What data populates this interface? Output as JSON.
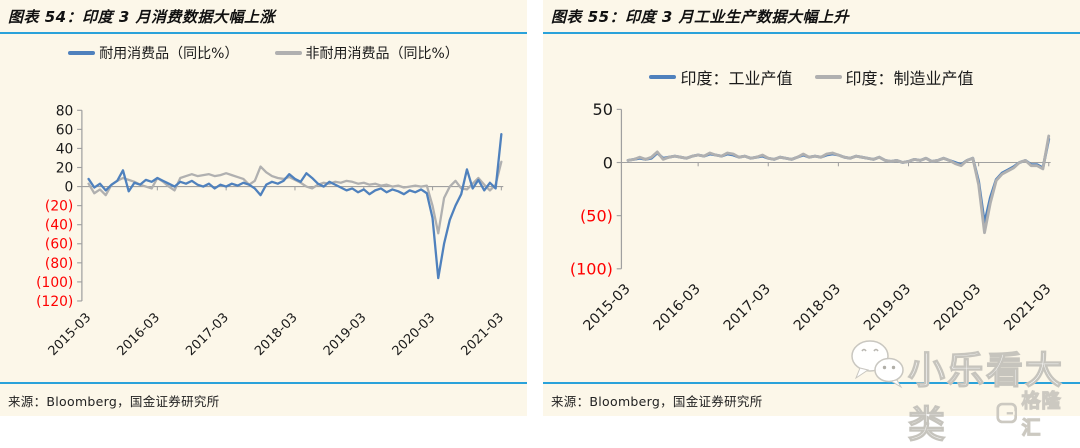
{
  "page": {
    "background": "#fcf7e9",
    "accent_rule_color": "#2aa2da",
    "negative_tick_color": "#ff0000",
    "axis_color": "#a0a0a0",
    "watermark": {
      "text": "小乐看大类",
      "logo_text": "格隆汇"
    }
  },
  "panels": [
    {
      "title": "图表 54：印度 3 月消费数据大幅上涨",
      "source": "来源：Bloomberg，国金证券研究所",
      "legend": [
        {
          "label": "耐用消费品（同比%）",
          "color": "#4f81bd"
        },
        {
          "label": "非耐用消费品（同比%）",
          "color": "#b0b0b0"
        }
      ]
    },
    {
      "title": "图表 55：印度 3 月工业生产数据大幅上升",
      "source": "来源：Bloomberg，国金证券研究所",
      "legend": [
        {
          "label": "印度：工业产值",
          "color": "#4f81bd"
        },
        {
          "label": "印度：制造业产值",
          "color": "#b0b0b0"
        }
      ]
    }
  ],
  "chart_data": [
    {
      "type": "line",
      "title": "图表 54：印度 3 月消费数据大幅上涨",
      "xlabel": "",
      "ylabel": "同比%",
      "x_frequency": "monthly",
      "x_tick_labels": [
        "2015-03",
        "2016-03",
        "2017-03",
        "2018-03",
        "2019-03",
        "2020-03",
        "2021-03"
      ],
      "y_tick_labels": [
        "80",
        "60",
        "40",
        "20",
        "0",
        "(20)",
        "(40)",
        "(60)",
        "(80)",
        "(100)",
        "(120)"
      ],
      "y_tick_values": [
        80,
        60,
        40,
        20,
        0,
        -20,
        -40,
        -60,
        -80,
        -100,
        -120
      ],
      "ylim": [
        -120,
        80
      ],
      "grid": false,
      "legend_position": "top",
      "series": [
        {
          "name": "耐用消费品（同比%）",
          "color": "#4f81bd",
          "values": [
            8,
            -1,
            3,
            -4,
            2,
            6,
            17,
            -5,
            4,
            2,
            7,
            5,
            9,
            6,
            3,
            0,
            5,
            3,
            6,
            2,
            0,
            3,
            -2,
            2,
            0,
            3,
            1,
            4,
            2,
            -2,
            -9,
            2,
            5,
            3,
            6,
            13,
            8,
            5,
            14,
            9,
            3,
            0,
            5,
            2,
            -1,
            -4,
            -2,
            -6,
            -3,
            -8,
            -4,
            -2,
            -6,
            -3,
            -5,
            -8,
            -4,
            -6,
            -3,
            -7,
            -33,
            -96,
            -60,
            -35,
            -20,
            -8,
            18,
            -2,
            7,
            -4,
            4,
            -2,
            55
          ]
        },
        {
          "name": "非耐用消费品（同比%）",
          "color": "#b0b0b0",
          "values": [
            3,
            -7,
            -3,
            -9,
            2,
            6,
            9,
            7,
            5,
            2,
            0,
            -2,
            9,
            5,
            0,
            -4,
            9,
            11,
            13,
            11,
            12,
            13,
            11,
            12,
            14,
            12,
            10,
            8,
            2,
            6,
            21,
            15,
            11,
            9,
            8,
            10,
            7,
            4,
            0,
            -2,
            2,
            4,
            3,
            5,
            4,
            6,
            5,
            3,
            4,
            2,
            3,
            1,
            2,
            0,
            1,
            -1,
            0,
            1,
            0,
            1,
            -20,
            -49,
            -12,
            0,
            6,
            -2,
            -3,
            3,
            9,
            2,
            -4,
            2,
            26
          ]
        }
      ]
    },
    {
      "type": "line",
      "title": "图表 55：印度 3 月工业生产数据大幅上升",
      "xlabel": "",
      "ylabel": "同比%",
      "x_frequency": "monthly",
      "x_tick_labels": [
        "2015-03",
        "2016-03",
        "2017-03",
        "2018-03",
        "2019-03",
        "2020-03",
        "2021-03"
      ],
      "y_tick_labels": [
        "50",
        "0",
        "(50)",
        "(100)"
      ],
      "y_tick_values": [
        50,
        0,
        -50,
        -100
      ],
      "ylim": [
        -100,
        50
      ],
      "grid": false,
      "legend_position": "top",
      "series": [
        {
          "name": "印度：工业产值",
          "color": "#4f81bd",
          "values": [
            2,
            3,
            4,
            3,
            4,
            9,
            4,
            5,
            6,
            5,
            4,
            6,
            7,
            6,
            8,
            7,
            6,
            8,
            7,
            5,
            6,
            4,
            5,
            6,
            4,
            3,
            5,
            4,
            3,
            5,
            7,
            5,
            6,
            5,
            7,
            8,
            7,
            5,
            4,
            6,
            5,
            4,
            3,
            5,
            2,
            1,
            2,
            0,
            1,
            3,
            2,
            4,
            1,
            2,
            4,
            2,
            0,
            -2,
            2,
            4,
            -18,
            -57,
            -33,
            -16,
            -10,
            -7,
            -4,
            0,
            2,
            -2,
            -2,
            -5,
            22
          ]
        },
        {
          "name": "印度：制造业产值",
          "color": "#b0b0b0",
          "values": [
            2,
            3,
            5,
            3,
            5,
            10,
            3,
            5,
            6,
            5,
            4,
            6,
            7,
            6,
            9,
            7,
            6,
            9,
            8,
            5,
            6,
            4,
            5,
            7,
            4,
            3,
            5,
            4,
            3,
            5,
            8,
            5,
            6,
            5,
            8,
            9,
            7,
            5,
            4,
            6,
            5,
            4,
            3,
            5,
            2,
            1,
            2,
            0,
            1,
            3,
            2,
            4,
            1,
            2,
            4,
            2,
            -1,
            -3,
            2,
            4,
            -21,
            -66,
            -38,
            -17,
            -11,
            -8,
            -5,
            0,
            2,
            -3,
            -3,
            -6,
            25
          ]
        }
      ]
    }
  ]
}
